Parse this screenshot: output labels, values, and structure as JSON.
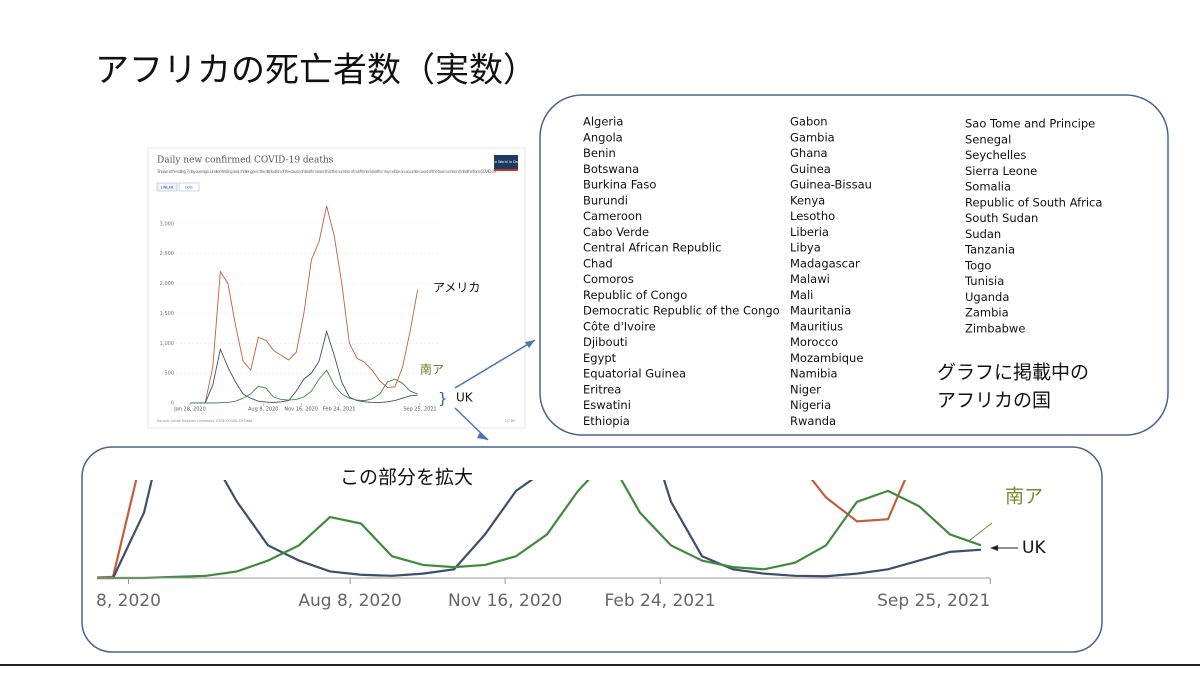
{
  "title": "アフリカの死亡者数（実数）",
  "chart": {
    "type": "line",
    "title": "Daily new confirmed COVID-19 deaths",
    "subtitle": "Shown is the rolling 7-day average. Limited testing and challenges in the attribution of the cause of death means that the number of confirmed deaths may not be an accurate count of the true number of deaths from COVID-19.",
    "buttons": [
      "LINEAR",
      "LOG"
    ],
    "logo": "Our World in Data",
    "source": "Source: Johns Hopkins University CSSE COVID-19 Data",
    "license": "CC BY",
    "x": [
      0,
      20,
      40,
      60,
      80,
      100,
      120,
      140,
      160,
      180,
      200,
      220,
      240,
      260,
      280,
      300,
      320,
      340,
      360,
      380,
      400,
      420,
      440,
      460,
      480,
      500,
      520,
      540,
      560,
      580,
      600
    ],
    "xlim": [
      -15,
      625
    ],
    "xticks": [
      {
        "value": 0,
        "label": "Jan 28, 2020"
      },
      {
        "value": 193,
        "label": "Aug 8, 2020"
      },
      {
        "value": 293,
        "label": "Nov 16, 2020"
      },
      {
        "value": 393,
        "label": "Feb 24, 2021"
      },
      {
        "value": 606,
        "label": "Sep 25, 2021"
      }
    ],
    "ylim": [
      0,
      3500
    ],
    "yticks": [
      0,
      500,
      {
        "value": 1000,
        "label": "1,000"
      },
      {
        "value": 1500,
        "label": "1,500"
      },
      {
        "value": 2000,
        "label": "2,000"
      },
      {
        "value": 2500,
        "label": "2,500"
      },
      {
        "value": 3000,
        "label": "3,000"
      }
    ],
    "grid": true,
    "series": [
      {
        "name": "アメリカ",
        "color": "#c0603a",
        "values": [
          0,
          0,
          5,
          600,
          2200,
          2000,
          1300,
          700,
          550,
          1100,
          1050,
          880,
          800,
          720,
          850,
          1500,
          2400,
          2700,
          3300,
          2800,
          2000,
          1000,
          750,
          680,
          550,
          370,
          260,
          270,
          600,
          1200,
          1900
        ]
      },
      {
        "name": "UK",
        "color": "#3d4f6b",
        "values": [
          0,
          0,
          0,
          300,
          900,
          600,
          350,
          150,
          80,
          30,
          15,
          10,
          20,
          40,
          200,
          400,
          500,
          700,
          1200,
          800,
          350,
          100,
          40,
          20,
          10,
          8,
          20,
          40,
          80,
          120,
          130
        ]
      },
      {
        "name": "南ア",
        "color": "#3f8a3f",
        "values": [
          0,
          0,
          0,
          0,
          5,
          10,
          30,
          80,
          150,
          280,
          250,
          100,
          60,
          50,
          60,
          100,
          200,
          400,
          550,
          300,
          150,
          80,
          50,
          40,
          70,
          150,
          350,
          400,
          330,
          200,
          150
        ]
      }
    ]
  },
  "zoom": {
    "caption": "この部分を拡大",
    "ylim": [
      0,
      450
    ],
    "xticks": [
      {
        "value": 50,
        "label": "8, 2020"
      },
      {
        "value": 193,
        "label": "Aug 8, 2020"
      },
      {
        "value": 293,
        "label": "Nov 16, 2020"
      },
      {
        "value": 393,
        "label": "Feb 24, 2021"
      },
      {
        "value": 606,
        "label": "Sep 25, 2021"
      }
    ]
  },
  "countries": [
    [
      "Algeria",
      "Angola",
      "Benin",
      "Botswana",
      "Burkina Faso",
      "Burundi",
      "Cameroon",
      "Cabo Verde",
      "Central African Republic",
      "Chad",
      "Comoros",
      "Republic of Congo",
      "Democratic Republic of the Congo",
      "Côte d'Ivoire",
      "Djibouti",
      "Egypt",
      "Equatorial Guinea",
      "Eritrea",
      "Eswatini",
      "Ethiopia"
    ],
    [
      "Gabon",
      "Gambia",
      "Ghana",
      "Guinea",
      "Guinea-Bissau",
      "Kenya",
      "Lesotho",
      "Liberia",
      "Libya",
      "Madagascar",
      "Malawi",
      "Mali",
      "Mauritania",
      "Mauritius",
      "Morocco",
      "Mozambique",
      "Namibia",
      "Niger",
      "Nigeria",
      "Rwanda"
    ],
    [
      "Sao Tome and Principe",
      "Senegal",
      "Seychelles",
      "Sierra Leone",
      "Somalia",
      "Republic of South Africa",
      "South Sudan",
      "Sudan",
      "Tanzania",
      "Togo",
      "Tunisia",
      "Uganda",
      "Zambia",
      "Zimbabwe"
    ]
  ],
  "callout": [
    "グラフに掲載中の",
    "アフリカの国"
  ]
}
